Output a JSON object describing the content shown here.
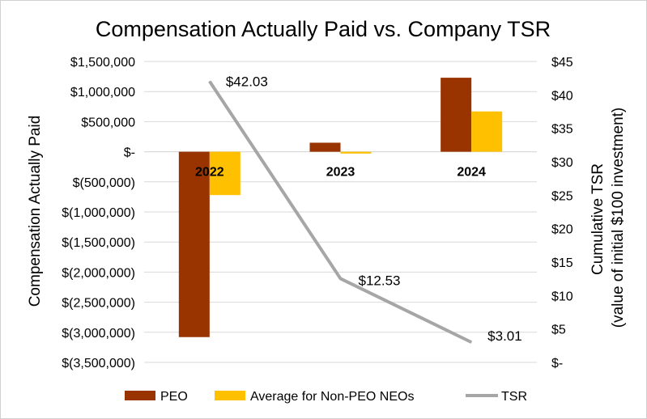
{
  "chart_data": {
    "type": "bar",
    "title": "Compensation Actually Paid vs. Company TSR",
    "categories": [
      "2022",
      "2023",
      "2024"
    ],
    "series": [
      {
        "name": "PEO",
        "type": "bar",
        "axis": "left",
        "color": "#993300",
        "values": [
          -3080000,
          150000,
          1230000
        ]
      },
      {
        "name": "Average for Non-PEO NEOs",
        "type": "bar",
        "axis": "left",
        "color": "#FFC000",
        "values": [
          -720000,
          -30000,
          670000
        ]
      },
      {
        "name": "TSR",
        "type": "line",
        "axis": "right",
        "color": "#A6A6A6",
        "values": [
          42.03,
          12.53,
          3.01
        ],
        "labels": [
          "$42.03",
          "$12.53",
          "$3.01"
        ]
      }
    ],
    "ylabel": "Compensation Actually Paid",
    "y2label_line1": "Cumulative TSR",
    "y2label_line2": "(value of initial $100 investment)",
    "ylim": [
      -3500000,
      1500000
    ],
    "y2lim": [
      0,
      45
    ],
    "yticks": [
      1500000,
      1000000,
      500000,
      0,
      -500000,
      -1000000,
      -1500000,
      -2000000,
      -2500000,
      -3000000,
      -3500000
    ],
    "ytick_labels": [
      "$1,500,000",
      "$1,000,000",
      "$500,000",
      "$-",
      "$(500,000)",
      "$(1,000,000)",
      "$(1,500,000)",
      "$(2,000,000)",
      "$(2,500,000)",
      "$(3,000,000)",
      "$(3,500,000)"
    ],
    "y2ticks": [
      45,
      40,
      35,
      30,
      25,
      20,
      15,
      10,
      5,
      0
    ],
    "y2tick_labels": [
      "$45",
      "$40",
      "$35",
      "$30",
      "$25",
      "$20",
      "$15",
      "$10",
      "$5",
      "$-"
    ],
    "grid": true,
    "legend": "bottom"
  }
}
